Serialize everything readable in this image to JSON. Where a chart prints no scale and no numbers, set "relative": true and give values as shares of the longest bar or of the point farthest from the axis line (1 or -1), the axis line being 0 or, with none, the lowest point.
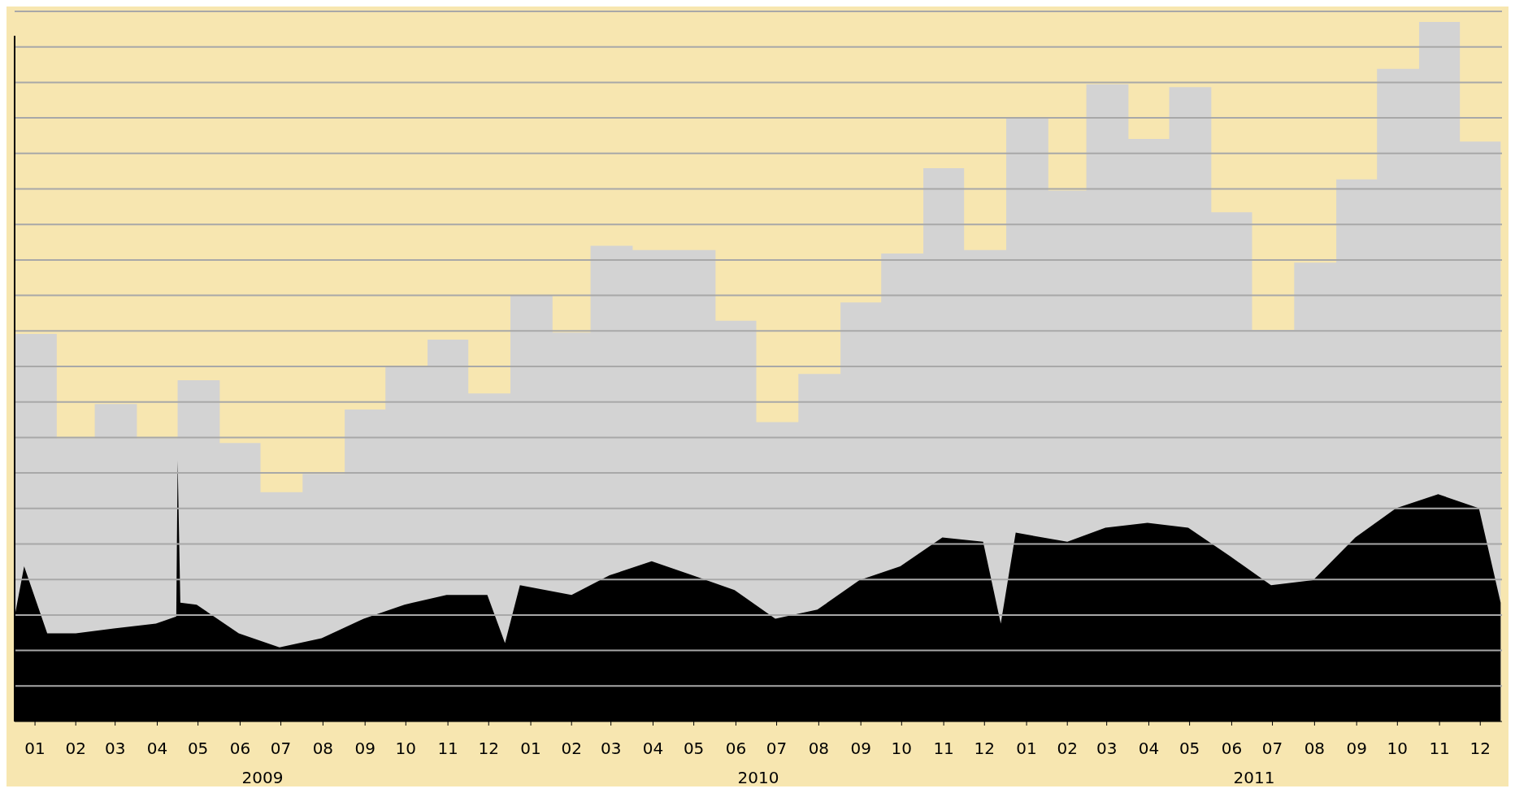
{
  "chart_data": {
    "type": "area",
    "relative": true,
    "grid": true,
    "xlim": [
      "2009-01",
      "2012-01"
    ],
    "xticks": [
      {
        "value": "2009-01-16",
        "label": "01"
      },
      {
        "value": "2009-02-15",
        "label": "02"
      },
      {
        "value": "2009-03-16",
        "label": "03"
      },
      {
        "value": "2009-04-16",
        "label": "04"
      },
      {
        "value": "2009-05-16",
        "label": "05"
      },
      {
        "value": "2009-06-16",
        "label": "06"
      },
      {
        "value": "2009-07-16",
        "label": "07"
      },
      {
        "value": "2009-08-16",
        "label": "08"
      },
      {
        "value": "2009-09-16",
        "label": "09"
      },
      {
        "value": "2009-10-16",
        "label": "10"
      },
      {
        "value": "2009-11-16",
        "label": "11"
      },
      {
        "value": "2009-12-16",
        "label": "12"
      },
      {
        "value": "2010-01-16",
        "label": "01"
      },
      {
        "value": "2010-02-15",
        "label": "02"
      },
      {
        "value": "2010-03-16",
        "label": "03"
      },
      {
        "value": "2010-04-16",
        "label": "04"
      },
      {
        "value": "2010-05-16",
        "label": "05"
      },
      {
        "value": "2010-06-16",
        "label": "06"
      },
      {
        "value": "2010-07-16",
        "label": "07"
      },
      {
        "value": "2010-08-16",
        "label": "08"
      },
      {
        "value": "2010-09-16",
        "label": "09"
      },
      {
        "value": "2010-10-16",
        "label": "10"
      },
      {
        "value": "2010-11-16",
        "label": "11"
      },
      {
        "value": "2010-12-16",
        "label": "12"
      },
      {
        "value": "2011-01-16",
        "label": "01"
      },
      {
        "value": "2011-02-15",
        "label": "02"
      },
      {
        "value": "2011-03-16",
        "label": "03"
      },
      {
        "value": "2011-04-16",
        "label": "04"
      },
      {
        "value": "2011-05-16",
        "label": "05"
      },
      {
        "value": "2011-06-16",
        "label": "06"
      },
      {
        "value": "2011-07-16",
        "label": "07"
      },
      {
        "value": "2011-08-16",
        "label": "08"
      },
      {
        "value": "2011-09-16",
        "label": "09"
      },
      {
        "value": "2011-10-16",
        "label": "10"
      },
      {
        "value": "2011-11-16",
        "label": "11"
      },
      {
        "value": "2011-12-16",
        "label": "12"
      }
    ],
    "annotations": [
      "2009",
      "2010",
      "2011"
    ],
    "series": [
      {
        "color": "#d3d3d3",
        "x": [
          "2009-01",
          "2009-02",
          "2009-03",
          "2009-04",
          "2009-05",
          "2009-06",
          "2009-07",
          "2009-08",
          "2009-09",
          "2009-10",
          "2009-11",
          "2009-12",
          "2010-01",
          "2010-02",
          "2010-03",
          "2010-04",
          "2010-05",
          "2010-06",
          "2010-07",
          "2010-08",
          "2010-09",
          "2010-10",
          "2010-11",
          "2010-12",
          "2011-01",
          "2011-02",
          "2011-03",
          "2011-04",
          "2011-05",
          "2011-06",
          "2011-07",
          "2011-08",
          "2011-09",
          "2011-10",
          "2011-11",
          "2011-12",
          "2011-12-31"
        ],
        "values": [
          0.554,
          0.405,
          0.454,
          0.405,
          0.488,
          0.398,
          0.328,
          0.354,
          0.446,
          0.508,
          0.546,
          0.469,
          0.609,
          0.556,
          0.68,
          0.674,
          0.674,
          0.573,
          0.428,
          0.497,
          0.599,
          0.669,
          0.791,
          0.674,
          0.864,
          0.759,
          0.911,
          0.833,
          0.907,
          0.728,
          0.56,
          0.656,
          0.775,
          0.933,
          1,
          0.829,
          0.829
        ]
      },
      {
        "color": "#000000",
        "x": [
          "2009-01-01",
          "2009-01-08",
          "2009-01-25",
          "2009-02-15",
          "2009-03-15",
          "2009-04-15",
          "2009-04-30",
          "2009-05-01",
          "2009-05-03",
          "2009-05-15",
          "2009-06-15",
          "2009-07-15",
          "2009-08-15",
          "2009-09-15",
          "2009-10-15",
          "2009-11-15",
          "2009-12-15",
          "2009-12-28",
          "2010-01-08",
          "2010-02-15",
          "2010-03-15",
          "2010-04-15",
          "2010-05-15",
          "2010-06-15",
          "2010-07-15",
          "2010-08-15",
          "2010-09-15",
          "2010-10-15",
          "2010-11-15",
          "2010-12-15",
          "2010-12-28",
          "2011-01-08",
          "2011-02-15",
          "2011-03-15",
          "2011-04-15",
          "2011-05-15",
          "2011-06-15",
          "2011-07-15",
          "2011-08-15",
          "2011-09-15",
          "2011-10-15",
          "2011-11-15",
          "2011-12-15",
          "2011-12-31"
        ],
        "values": [
          0.15,
          0.222,
          0.126,
          0.126,
          0.133,
          0.14,
          0.15,
          0.373,
          0.17,
          0.167,
          0.126,
          0.106,
          0.119,
          0.147,
          0.167,
          0.181,
          0.181,
          0.112,
          0.195,
          0.181,
          0.209,
          0.229,
          0.209,
          0.188,
          0.147,
          0.16,
          0.202,
          0.222,
          0.263,
          0.257,
          0.14,
          0.27,
          0.257,
          0.277,
          0.284,
          0.277,
          0.236,
          0.195,
          0.202,
          0.263,
          0.305,
          0.325,
          0.305,
          0.17
        ]
      }
    ]
  }
}
